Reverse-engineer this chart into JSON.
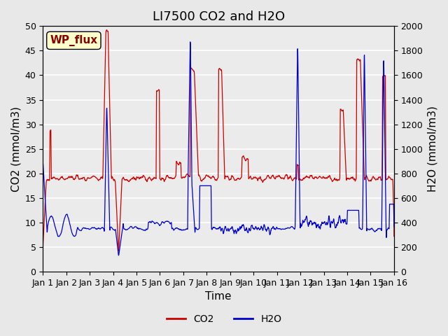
{
  "title": "LI7500 CO2 and H2O",
  "xlabel": "Time",
  "ylabel_left": "CO2 (mmol/m3)",
  "ylabel_right": "H2O (mmol/m3)",
  "annotation": "WP_flux",
  "xlim": [
    0,
    15
  ],
  "ylim_left": [
    0,
    50
  ],
  "ylim_right": [
    0,
    2000
  ],
  "co2_color": "#cc0000",
  "h2o_color": "#0000cc",
  "legend_co2": "CO2",
  "legend_h2o": "H2O",
  "xtick_labels": [
    "Jan 1",
    "Jan 2",
    "Jan 3",
    "Jan 4",
    "Jan 5",
    "Jan 6",
    "Jan 7",
    "Jan 8",
    "Jan 9",
    "Jan 10",
    "Jan 11",
    "Jan 12",
    "Jan 13",
    "Jan 14",
    "Jan 15",
    "Jan 16"
  ],
  "yticks_left": [
    0,
    5,
    10,
    15,
    20,
    25,
    30,
    35,
    40,
    45,
    50
  ],
  "yticks_right": [
    0,
    200,
    400,
    600,
    800,
    1000,
    1200,
    1400,
    1600,
    1800,
    2000
  ],
  "title_fontsize": 13,
  "axis_label_fontsize": 11,
  "tick_fontsize": 9,
  "legend_fontsize": 10,
  "annotation_fontsize": 11
}
